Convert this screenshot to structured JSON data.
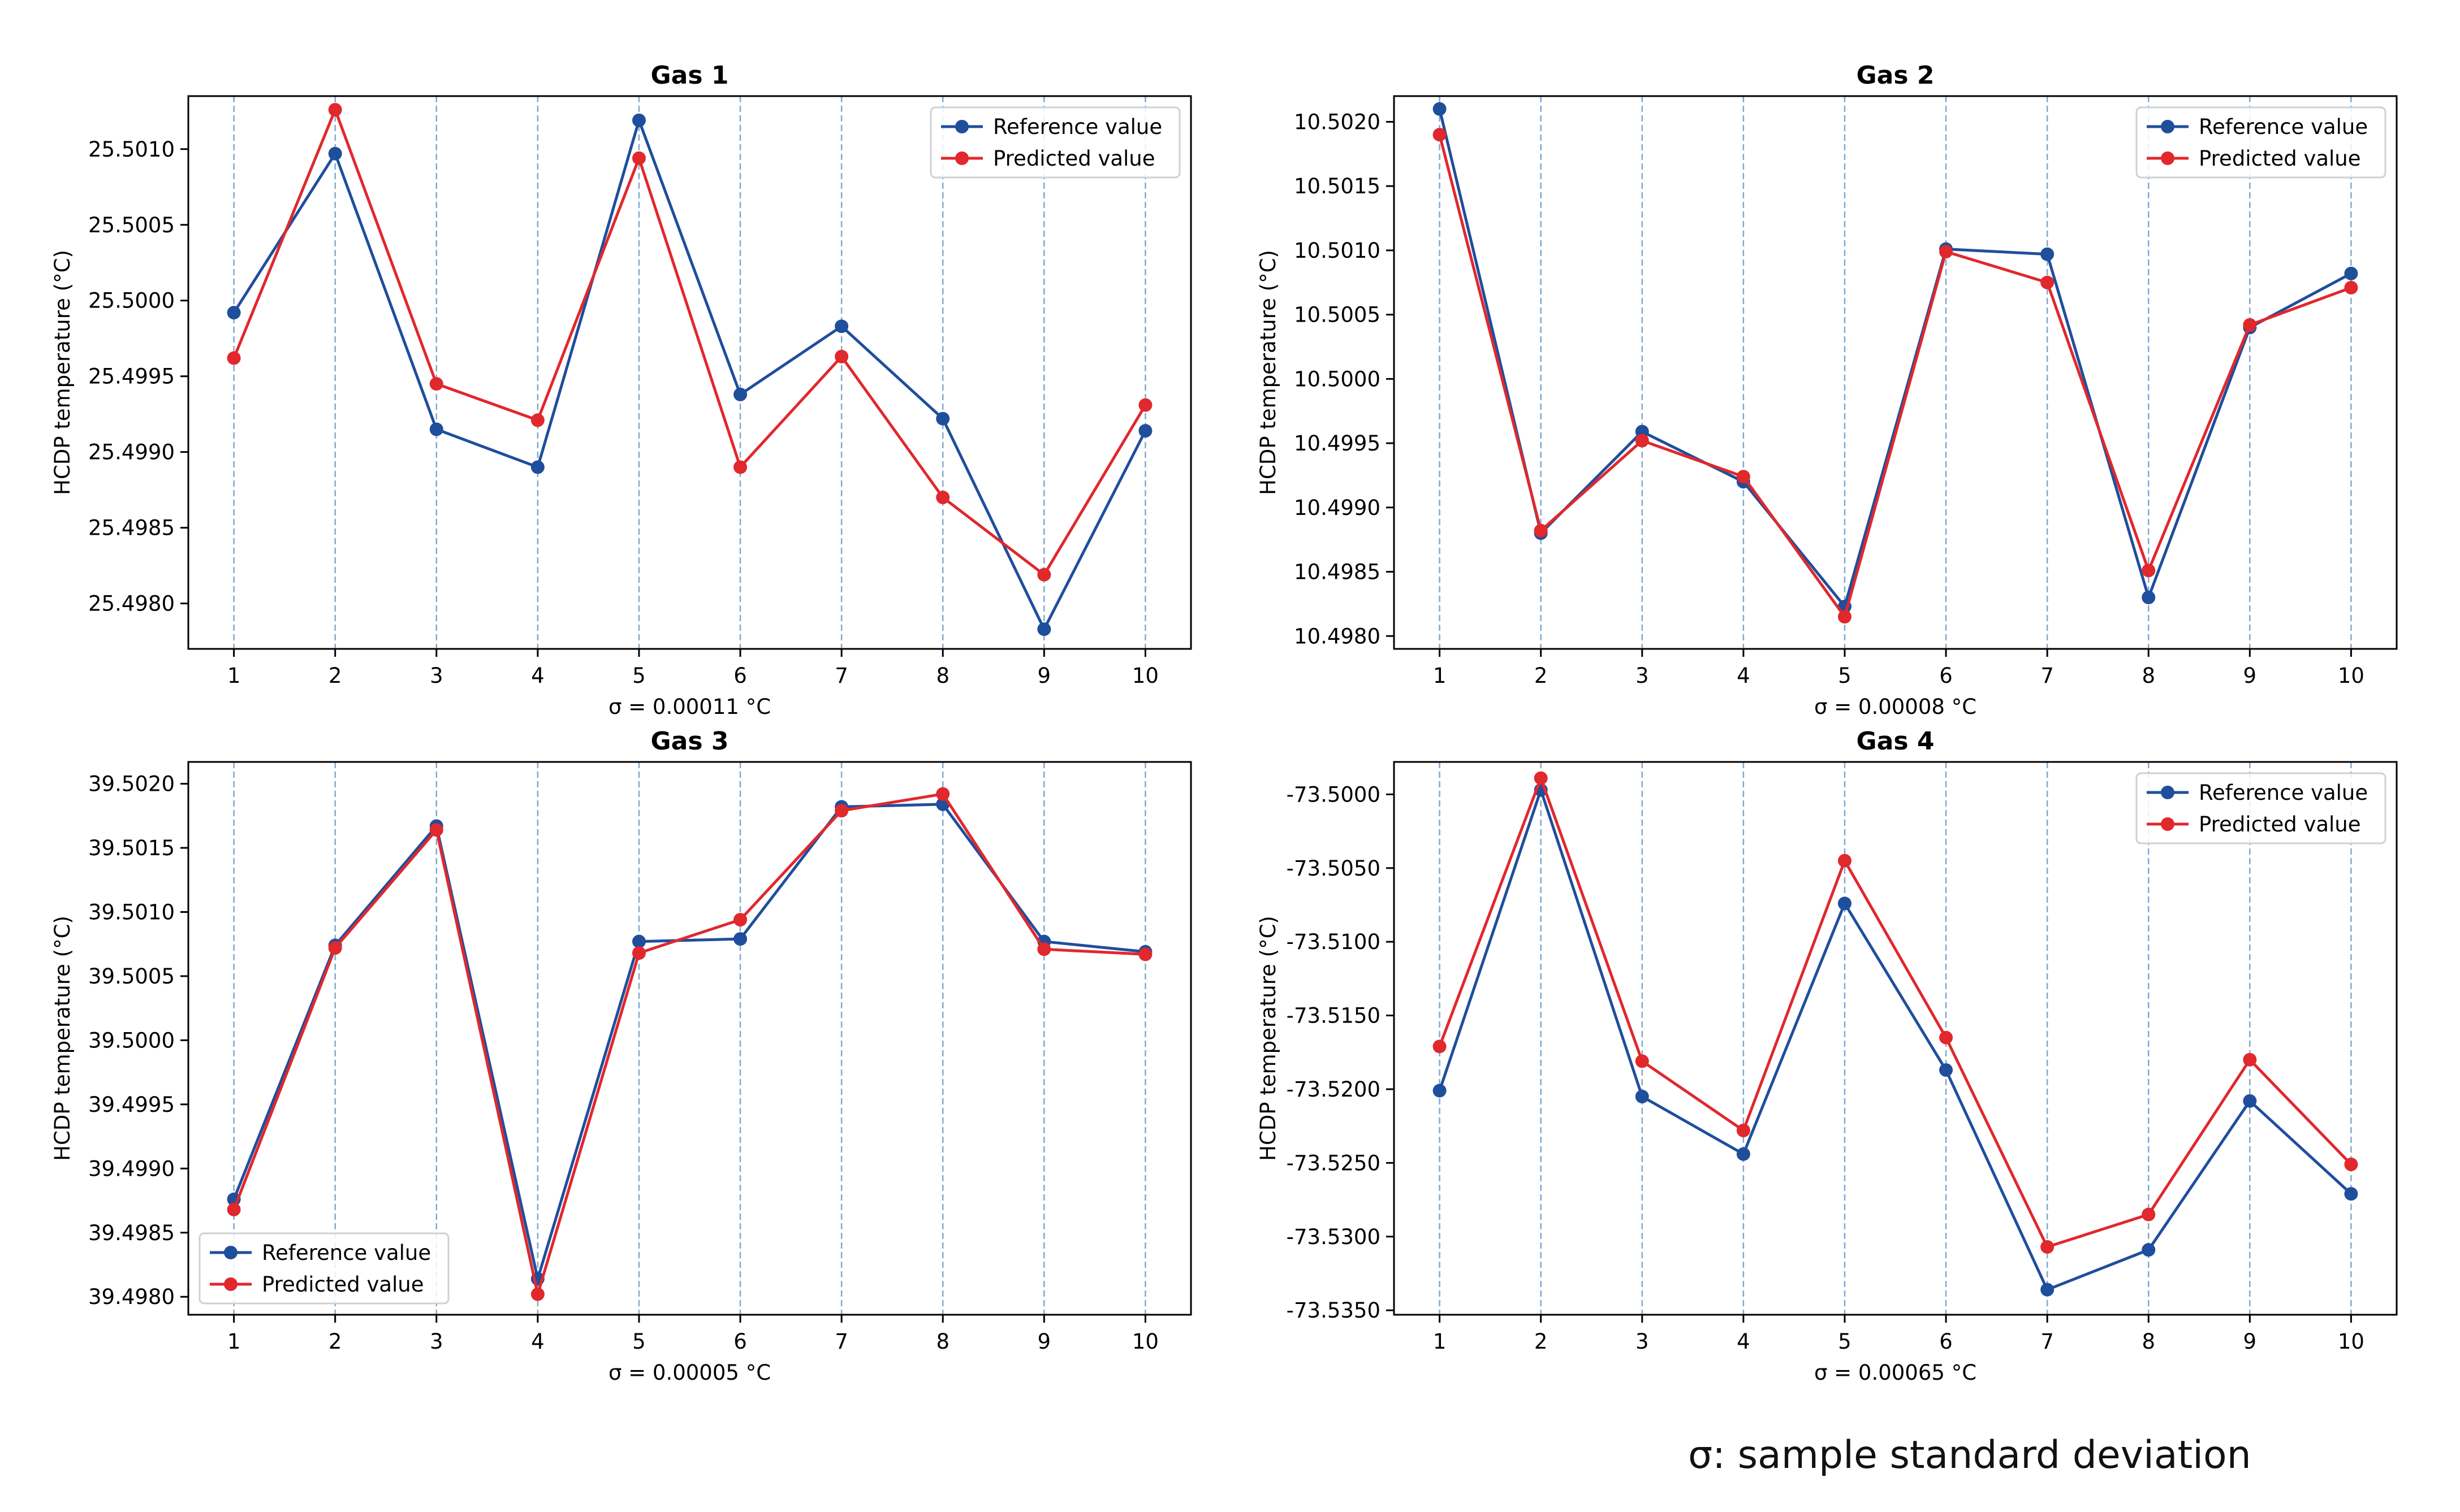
{
  "colors": {
    "reference": "#1f4e9c",
    "predicted": "#e0282d",
    "vgrid": "#7fa9cf"
  },
  "footnote": "σ: sample standard deviation",
  "chart_data": [
    {
      "type": "line",
      "title": "Gas 1",
      "xlabel": "σ  = 0.00011 °C",
      "ylabel": "HCDP temperature (°C)",
      "x": [
        1,
        2,
        3,
        4,
        5,
        6,
        7,
        8,
        9,
        10
      ],
      "ylim": [
        25.4977,
        25.50135
      ],
      "yticks": [
        25.498,
        25.4985,
        25.499,
        25.4995,
        25.5,
        25.5005,
        25.501
      ],
      "ytick_labels": [
        "25.4980",
        "25.4985",
        "25.4990",
        "25.4995",
        "25.5000",
        "25.5005",
        "25.5010"
      ],
      "grid": "vertical dashed",
      "legend": "upper right",
      "series": [
        {
          "name": "Reference value",
          "values": [
            25.49992,
            25.50097,
            25.49915,
            25.4989,
            25.50119,
            25.49938,
            25.49983,
            25.49922,
            25.49783,
            25.49914
          ]
        },
        {
          "name": "Predicted value",
          "values": [
            25.49962,
            25.50126,
            25.49945,
            25.49921,
            25.50094,
            25.4989,
            25.49963,
            25.4987,
            25.49819,
            25.49931
          ]
        }
      ]
    },
    {
      "type": "line",
      "title": "Gas 2",
      "xlabel": "σ  = 0.00008 °C",
      "ylabel": "HCDP temperature (°C)",
      "x": [
        1,
        2,
        3,
        4,
        5,
        6,
        7,
        8,
        9,
        10
      ],
      "ylim": [
        10.4979,
        10.5022
      ],
      "yticks": [
        10.498,
        10.4985,
        10.499,
        10.4995,
        10.5,
        10.5005,
        10.501,
        10.5015,
        10.502
      ],
      "ytick_labels": [
        "10.4980",
        "10.4985",
        "10.4990",
        "10.4995",
        "10.5000",
        "10.5005",
        "10.5010",
        "10.5015",
        "10.5020"
      ],
      "grid": "vertical dashed",
      "legend": "upper right",
      "series": [
        {
          "name": "Reference value",
          "values": [
            10.5021,
            10.4988,
            10.49959,
            10.4992,
            10.49823,
            10.50101,
            10.50097,
            10.4983,
            10.5004,
            10.50082
          ]
        },
        {
          "name": "Predicted value",
          "values": [
            10.5019,
            10.49882,
            10.49952,
            10.49924,
            10.49815,
            10.50099,
            10.50075,
            10.49851,
            10.50042,
            10.50071
          ]
        }
      ]
    },
    {
      "type": "line",
      "title": "Gas 3",
      "xlabel": "σ  = 0.00005 °C",
      "ylabel": "HCDP temperature (°C)",
      "x": [
        1,
        2,
        3,
        4,
        5,
        6,
        7,
        8,
        9,
        10
      ],
      "ylim": [
        39.49786,
        39.50217
      ],
      "yticks": [
        39.498,
        39.4985,
        39.499,
        39.4995,
        39.5,
        39.5005,
        39.501,
        39.5015,
        39.502
      ],
      "ytick_labels": [
        "39.4980",
        "39.4985",
        "39.4990",
        "39.4995",
        "39.5000",
        "39.5005",
        "39.5010",
        "39.5015",
        "39.5020"
      ],
      "grid": "vertical dashed",
      "legend": "lower left",
      "series": [
        {
          "name": "Reference value",
          "values": [
            39.49876,
            39.50074,
            39.50167,
            39.49814,
            39.50077,
            39.50079,
            39.50182,
            39.50184,
            39.50077,
            39.50069
          ]
        },
        {
          "name": "Predicted value",
          "values": [
            39.49868,
            39.50072,
            39.50164,
            39.49802,
            39.50068,
            39.50094,
            39.50179,
            39.50192,
            39.50071,
            39.50067
          ]
        }
      ]
    },
    {
      "type": "line",
      "title": "Gas 4",
      "xlabel": "σ  = 0.00065 °C",
      "ylabel": "HCDP temperature (°C)",
      "x": [
        1,
        2,
        3,
        4,
        5,
        6,
        7,
        8,
        9,
        10
      ],
      "ylim": [
        -73.5353,
        -73.4978
      ],
      "yticks": [
        -73.535,
        -73.53,
        -73.525,
        -73.52,
        -73.515,
        -73.51,
        -73.505,
        -73.5
      ],
      "ytick_labels": [
        "-73.5350",
        "-73.5300",
        "-73.5250",
        "-73.5200",
        "-73.5150",
        "-73.5100",
        "-73.5050",
        "-73.5000"
      ],
      "grid": "vertical dashed",
      "legend": "upper right",
      "series": [
        {
          "name": "Reference value",
          "values": [
            -73.5201,
            -73.4997,
            -73.5205,
            -73.5244,
            -73.5074,
            -73.5187,
            -73.5336,
            -73.5309,
            -73.5208,
            -73.5271
          ]
        },
        {
          "name": "Predicted value",
          "values": [
            -73.5171,
            -73.4989,
            -73.5181,
            -73.5228,
            -73.5045,
            -73.5165,
            -73.5307,
            -73.5285,
            -73.518,
            -73.5251
          ]
        }
      ]
    }
  ]
}
